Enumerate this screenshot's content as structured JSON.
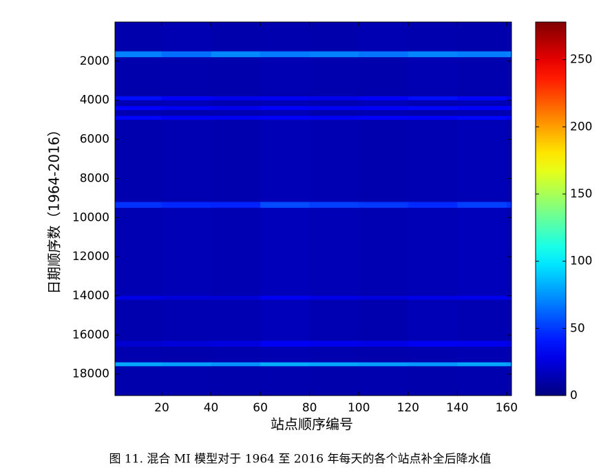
{
  "chart_data": {
    "type": "heatmap",
    "xlabel": "站点顺序编号",
    "ylabel": "日期顺序数（1964-2016）",
    "caption": "图 11. 混合 MI 模型对于 1964 至 2016 年每天的各个站点补全后降水值",
    "xbins": [
      1,
      20,
      40,
      60,
      80,
      100,
      120,
      140,
      160,
      162
    ],
    "ybins": [
      0,
      1500,
      1800,
      3800,
      4000,
      4300,
      4500,
      4800,
      5000,
      9200,
      9500,
      14000,
      14200,
      16300,
      16600,
      17400,
      17600,
      19100
    ],
    "values": [
      [
        12,
        14,
        12,
        13,
        12,
        14,
        13,
        12,
        13
      ],
      [
        70,
        65,
        72,
        68,
        70,
        66,
        71,
        69,
        70
      ],
      [
        12,
        13,
        12,
        14,
        13,
        12,
        14,
        13,
        12
      ],
      [
        38,
        34,
        30,
        32,
        30,
        34,
        38,
        36,
        30
      ],
      [
        14,
        15,
        14,
        15,
        14,
        15,
        14,
        15,
        14
      ],
      [
        35,
        32,
        30,
        34,
        32,
        33,
        36,
        34,
        35
      ],
      [
        14,
        13,
        14,
        15,
        13,
        14,
        13,
        14,
        14
      ],
      [
        36,
        33,
        32,
        34,
        33,
        35,
        34,
        36,
        35
      ],
      [
        13,
        14,
        13,
        15,
        14,
        13,
        14,
        15,
        13
      ],
      [
        48,
        45,
        44,
        55,
        52,
        50,
        46,
        52,
        48
      ],
      [
        14,
        15,
        14,
        16,
        15,
        14,
        15,
        16,
        14
      ],
      [
        28,
        25,
        24,
        32,
        28,
        26,
        28,
        30,
        28
      ],
      [
        13,
        14,
        14,
        16,
        14,
        13,
        15,
        14,
        13
      ],
      [
        22,
        24,
        26,
        32,
        30,
        28,
        32,
        30,
        28
      ],
      [
        13,
        12,
        13,
        14,
        13,
        12,
        13,
        14,
        13
      ],
      [
        80,
        78,
        75,
        82,
        80,
        78,
        76,
        80,
        78
      ],
      [
        12,
        13,
        12,
        13,
        12,
        13,
        12,
        13,
        12
      ]
    ],
    "xlim": [
      1,
      162
    ],
    "xticks": [
      20,
      40,
      60,
      80,
      100,
      120,
      140,
      160
    ],
    "ylim": [
      0,
      19100
    ],
    "yticks": [
      2000,
      4000,
      6000,
      8000,
      10000,
      12000,
      14000,
      16000,
      18000
    ],
    "clim": [
      0,
      278
    ],
    "cticks": [
      0,
      50,
      100,
      150,
      200,
      250
    ],
    "colormap": "jet"
  }
}
